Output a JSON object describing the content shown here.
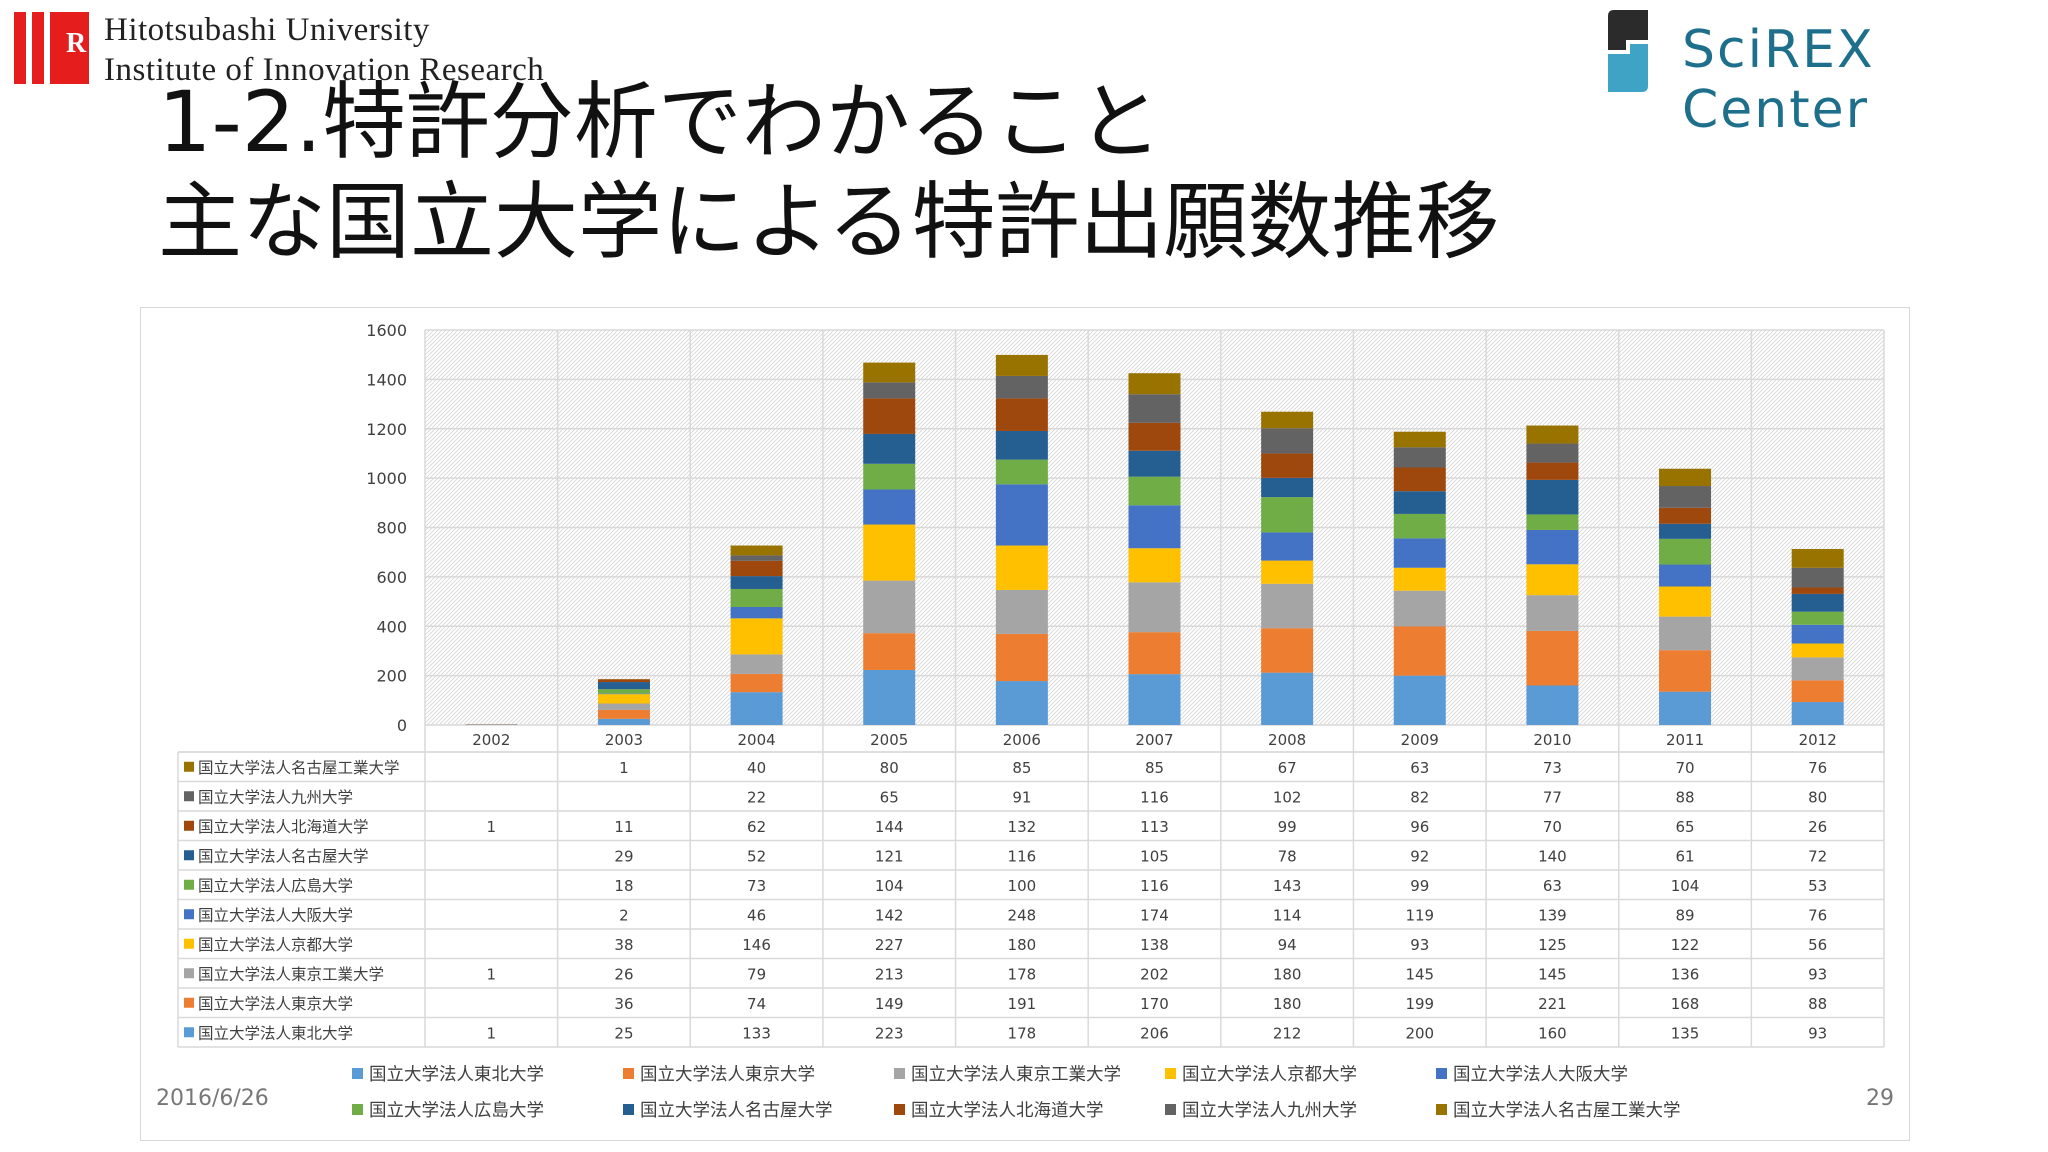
{
  "header": {
    "university_line1": "Hitotsubashi University",
    "university_line2": "Institute of Innovation Research",
    "university_mark": "R",
    "center_name": "SciREX Center"
  },
  "title": {
    "line1": "1-2.特許分析でわかること",
    "line2": "主な国立大学による特許出願数推移"
  },
  "footer": {
    "date": "2016/6/26",
    "page_number": "29"
  },
  "colors": {
    "brand_red": "#e51d1d",
    "scirex_teal": "#1d6f8c"
  },
  "chart_data": {
    "type": "bar",
    "stacked": true,
    "categories": [
      "2002",
      "2003",
      "2004",
      "2005",
      "2006",
      "2007",
      "2008",
      "2009",
      "2010",
      "2011",
      "2012"
    ],
    "ylim": [
      0,
      1600
    ],
    "yticks": [
      "0",
      "200",
      "400",
      "600",
      "800",
      "1000",
      "1200",
      "1400",
      "1600"
    ],
    "grid": true,
    "legend_position": "bottom",
    "series": [
      {
        "name": "国立大学法人東北大学",
        "color": "#5b9bd5",
        "values": [
          1,
          25,
          133,
          223,
          178,
          206,
          212,
          200,
          160,
          135,
          93
        ]
      },
      {
        "name": "国立大学法人東京大学",
        "color": "#ed7d31",
        "values": [
          null,
          36,
          74,
          149,
          191,
          170,
          180,
          199,
          221,
          168,
          88
        ]
      },
      {
        "name": "国立大学法人東京工業大学",
        "color": "#a5a5a5",
        "values": [
          1,
          26,
          79,
          213,
          178,
          202,
          180,
          145,
          145,
          136,
          93
        ]
      },
      {
        "name": "国立大学法人京都大学",
        "color": "#ffc000",
        "values": [
          null,
          38,
          146,
          227,
          180,
          138,
          94,
          93,
          125,
          122,
          56
        ]
      },
      {
        "name": "国立大学法人大阪大学",
        "color": "#4472c4",
        "values": [
          null,
          2,
          46,
          142,
          248,
          174,
          114,
          119,
          139,
          89,
          76
        ]
      },
      {
        "name": "国立大学法人広島大学",
        "color": "#70ad47",
        "values": [
          null,
          18,
          73,
          104,
          100,
          116,
          143,
          99,
          63,
          104,
          53
        ]
      },
      {
        "name": "国立大学法人名古屋大学",
        "color": "#255e91",
        "values": [
          null,
          29,
          52,
          121,
          116,
          105,
          78,
          92,
          140,
          61,
          72
        ]
      },
      {
        "name": "国立大学法人北海道大学",
        "color": "#9e480e",
        "values": [
          1,
          11,
          62,
          144,
          132,
          113,
          99,
          96,
          70,
          65,
          26
        ]
      },
      {
        "name": "国立大学法人九州大学",
        "color": "#636363",
        "values": [
          null,
          null,
          22,
          65,
          91,
          116,
          102,
          82,
          77,
          88,
          80
        ]
      },
      {
        "name": "国立大学法人名古屋工業大学",
        "color": "#997300",
        "values": [
          null,
          1,
          40,
          80,
          85,
          85,
          67,
          63,
          73,
          70,
          76
        ]
      }
    ]
  }
}
